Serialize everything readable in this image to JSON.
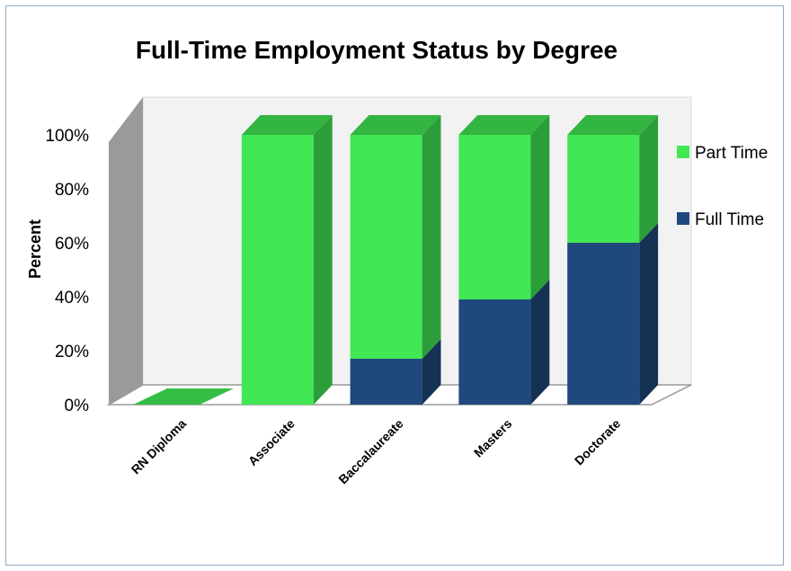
{
  "chart_data": {
    "type": "bar",
    "stacked": true,
    "percent_stacked": true,
    "three_d": true,
    "title": "Full-Time Employment Status by Degree",
    "xlabel": "",
    "ylabel": "Percent",
    "categories": [
      "RN Diploma",
      "Associate",
      "Baccalaureate",
      "Masters",
      "Doctorate"
    ],
    "series": [
      {
        "name": "Full Time",
        "values": [
          0,
          0,
          17,
          39,
          60
        ]
      },
      {
        "name": "Part Time",
        "values": [
          0,
          100,
          83,
          61,
          40
        ]
      }
    ],
    "ylim": [
      0,
      100
    ],
    "yticks": [
      "0%",
      "20%",
      "40%",
      "60%",
      "80%",
      "100%"
    ],
    "legend": "right",
    "colors": {
      "Full Time": "#1f497d",
      "Part Time": "#41e854",
      "floor": "#ffffff",
      "back_wall": "#f2f2f2",
      "side_wall": "#9a9a9a"
    }
  }
}
